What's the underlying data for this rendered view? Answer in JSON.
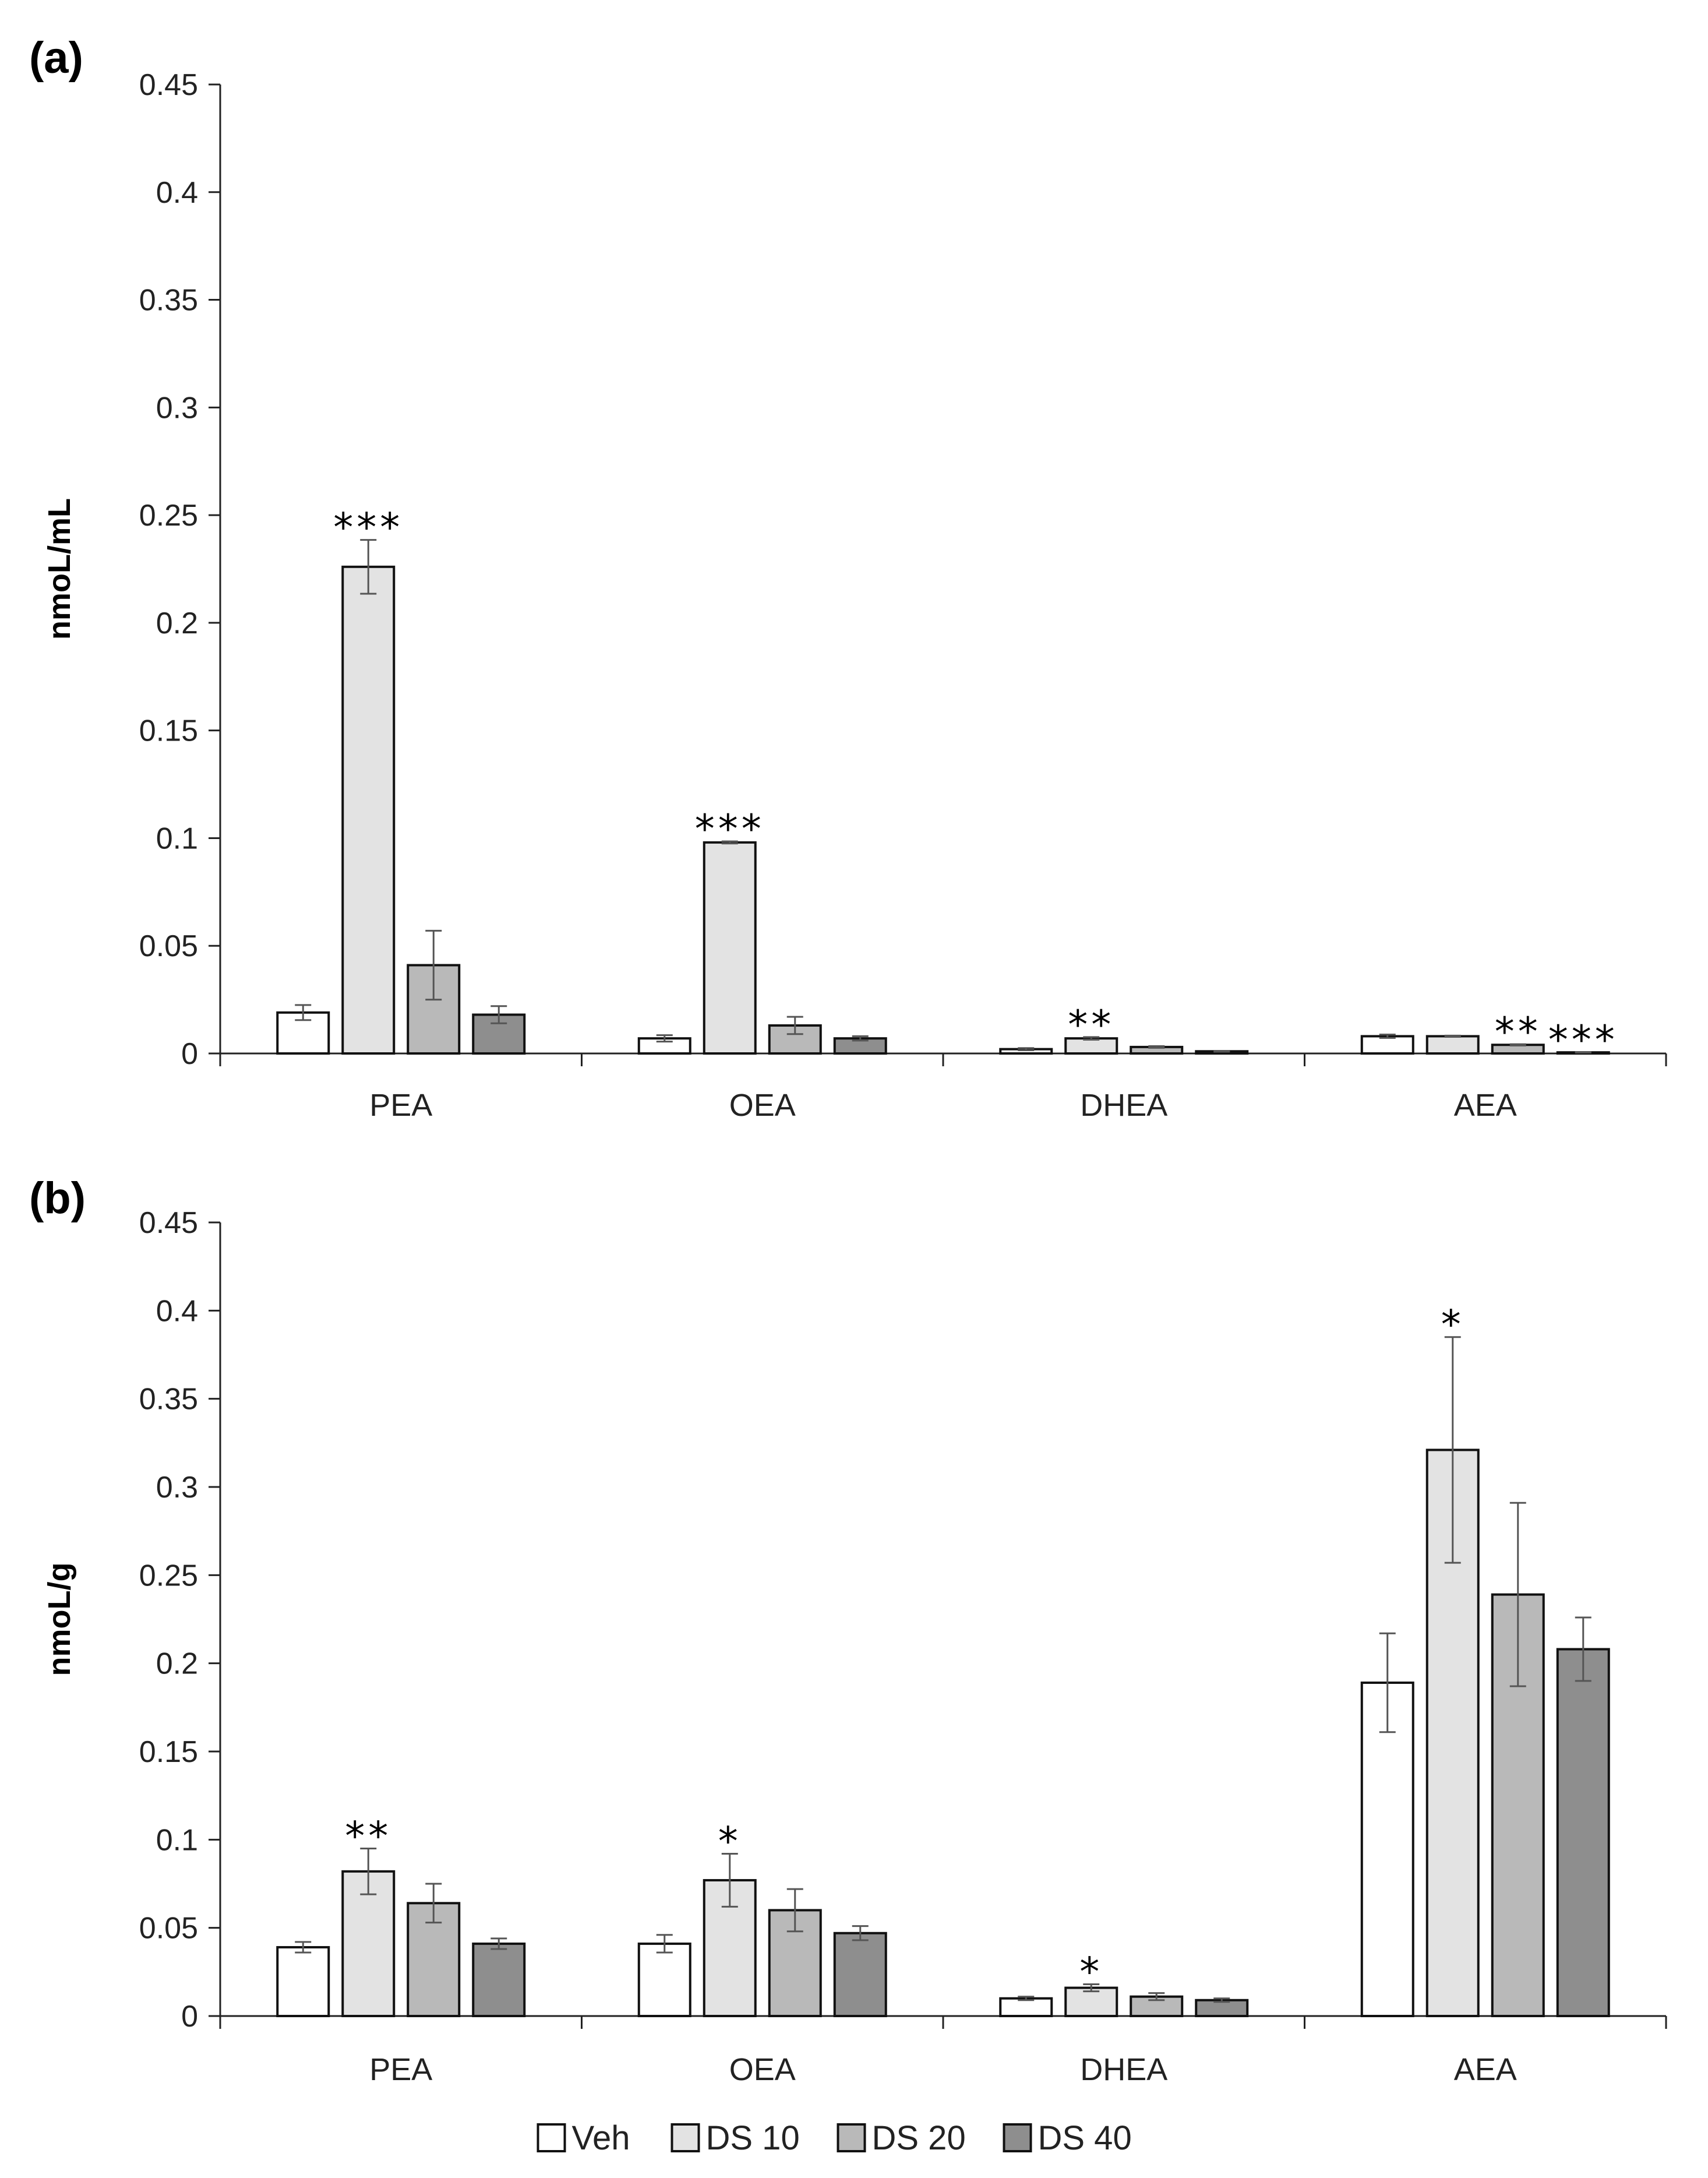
{
  "chart_data": [
    {
      "type": "bar",
      "panel_label": "(a)",
      "categories": [
        "PEA",
        "OEA",
        "DHEA",
        "AEA"
      ],
      "ylabel": "nmoL/mL",
      "ylim": [
        0,
        0.45
      ],
      "yticks": [
        0,
        0.05,
        0.1,
        0.15,
        0.2,
        0.25,
        0.3,
        0.35,
        0.4,
        0.45
      ],
      "ytick_labels": [
        "0",
        "0.05",
        "0.1",
        "0.15",
        "0.2",
        "0.25",
        "0.3",
        "0.35",
        "0.4",
        "0.45"
      ],
      "series": [
        {
          "name": "Veh",
          "color": "#ffffff",
          "values": [
            0.019,
            0.007,
            0.002,
            0.008
          ],
          "errors": [
            0.0035,
            0.0015,
            0.0005,
            0.0008
          ]
        },
        {
          "name": "DS 10",
          "color": "#e3e3e3",
          "values": [
            0.226,
            0.098,
            0.007,
            0.008
          ],
          "errors": [
            0.0125,
            0.0005,
            0.0006,
            0.0003
          ]
        },
        {
          "name": "DS 20",
          "color": "#b9b9b9",
          "values": [
            0.041,
            0.013,
            0.003,
            0.004
          ],
          "errors": [
            0.016,
            0.004,
            0.0004,
            0.0003
          ]
        },
        {
          "name": "DS 40",
          "color": "#8e8e8e",
          "values": [
            0.018,
            0.007,
            0.001,
            0.0005
          ],
          "errors": [
            0.004,
            0.001,
            0.0002,
            0.0001
          ]
        }
      ],
      "annotations": [
        {
          "category": "PEA",
          "series": "DS 10",
          "text": "***"
        },
        {
          "category": "OEA",
          "series": "DS 10",
          "text": "***"
        },
        {
          "category": "DHEA",
          "series": "DS 10",
          "text": "**"
        },
        {
          "category": "AEA",
          "series": "DS 20",
          "text": "**"
        },
        {
          "category": "AEA",
          "series": "DS 40",
          "text": "***"
        }
      ]
    },
    {
      "type": "bar",
      "panel_label": "(b)",
      "categories": [
        "PEA",
        "OEA",
        "DHEA",
        "AEA"
      ],
      "ylabel": "nmoL/g",
      "ylim": [
        0,
        0.45
      ],
      "yticks": [
        0,
        0.05,
        0.1,
        0.15,
        0.2,
        0.25,
        0.3,
        0.35,
        0.4,
        0.45
      ],
      "ytick_labels": [
        "0",
        "0.05",
        "0.1",
        "0.15",
        "0.2",
        "0.25",
        "0.3",
        "0.35",
        "0.4",
        "0.45"
      ],
      "series": [
        {
          "name": "Veh",
          "color": "#ffffff",
          "values": [
            0.039,
            0.041,
            0.01,
            0.189
          ],
          "errors": [
            0.003,
            0.005,
            0.001,
            0.028
          ]
        },
        {
          "name": "DS 10",
          "color": "#e3e3e3",
          "values": [
            0.082,
            0.077,
            0.016,
            0.321
          ],
          "errors": [
            0.013,
            0.015,
            0.002,
            0.064
          ]
        },
        {
          "name": "DS 20",
          "color": "#b9b9b9",
          "values": [
            0.064,
            0.06,
            0.011,
            0.239
          ],
          "errors": [
            0.011,
            0.012,
            0.002,
            0.052
          ]
        },
        {
          "name": "DS 40",
          "color": "#8e8e8e",
          "values": [
            0.041,
            0.047,
            0.009,
            0.208
          ],
          "errors": [
            0.003,
            0.004,
            0.001,
            0.018
          ]
        }
      ],
      "annotations": [
        {
          "category": "PEA",
          "series": "DS 10",
          "text": "**"
        },
        {
          "category": "OEA",
          "series": "DS 10",
          "text": "*"
        },
        {
          "category": "DHEA",
          "series": "DS 10",
          "text": "*"
        },
        {
          "category": "AEA",
          "series": "DS 10",
          "text": "*"
        }
      ]
    }
  ],
  "legend": {
    "position": "bottom-center",
    "items": [
      {
        "label": "Veh",
        "color": "#ffffff"
      },
      {
        "label": "DS 10",
        "color": "#e3e3e3"
      },
      {
        "label": "DS 20",
        "color": "#b9b9b9"
      },
      {
        "label": "DS 40",
        "color": "#8e8e8e"
      }
    ]
  }
}
